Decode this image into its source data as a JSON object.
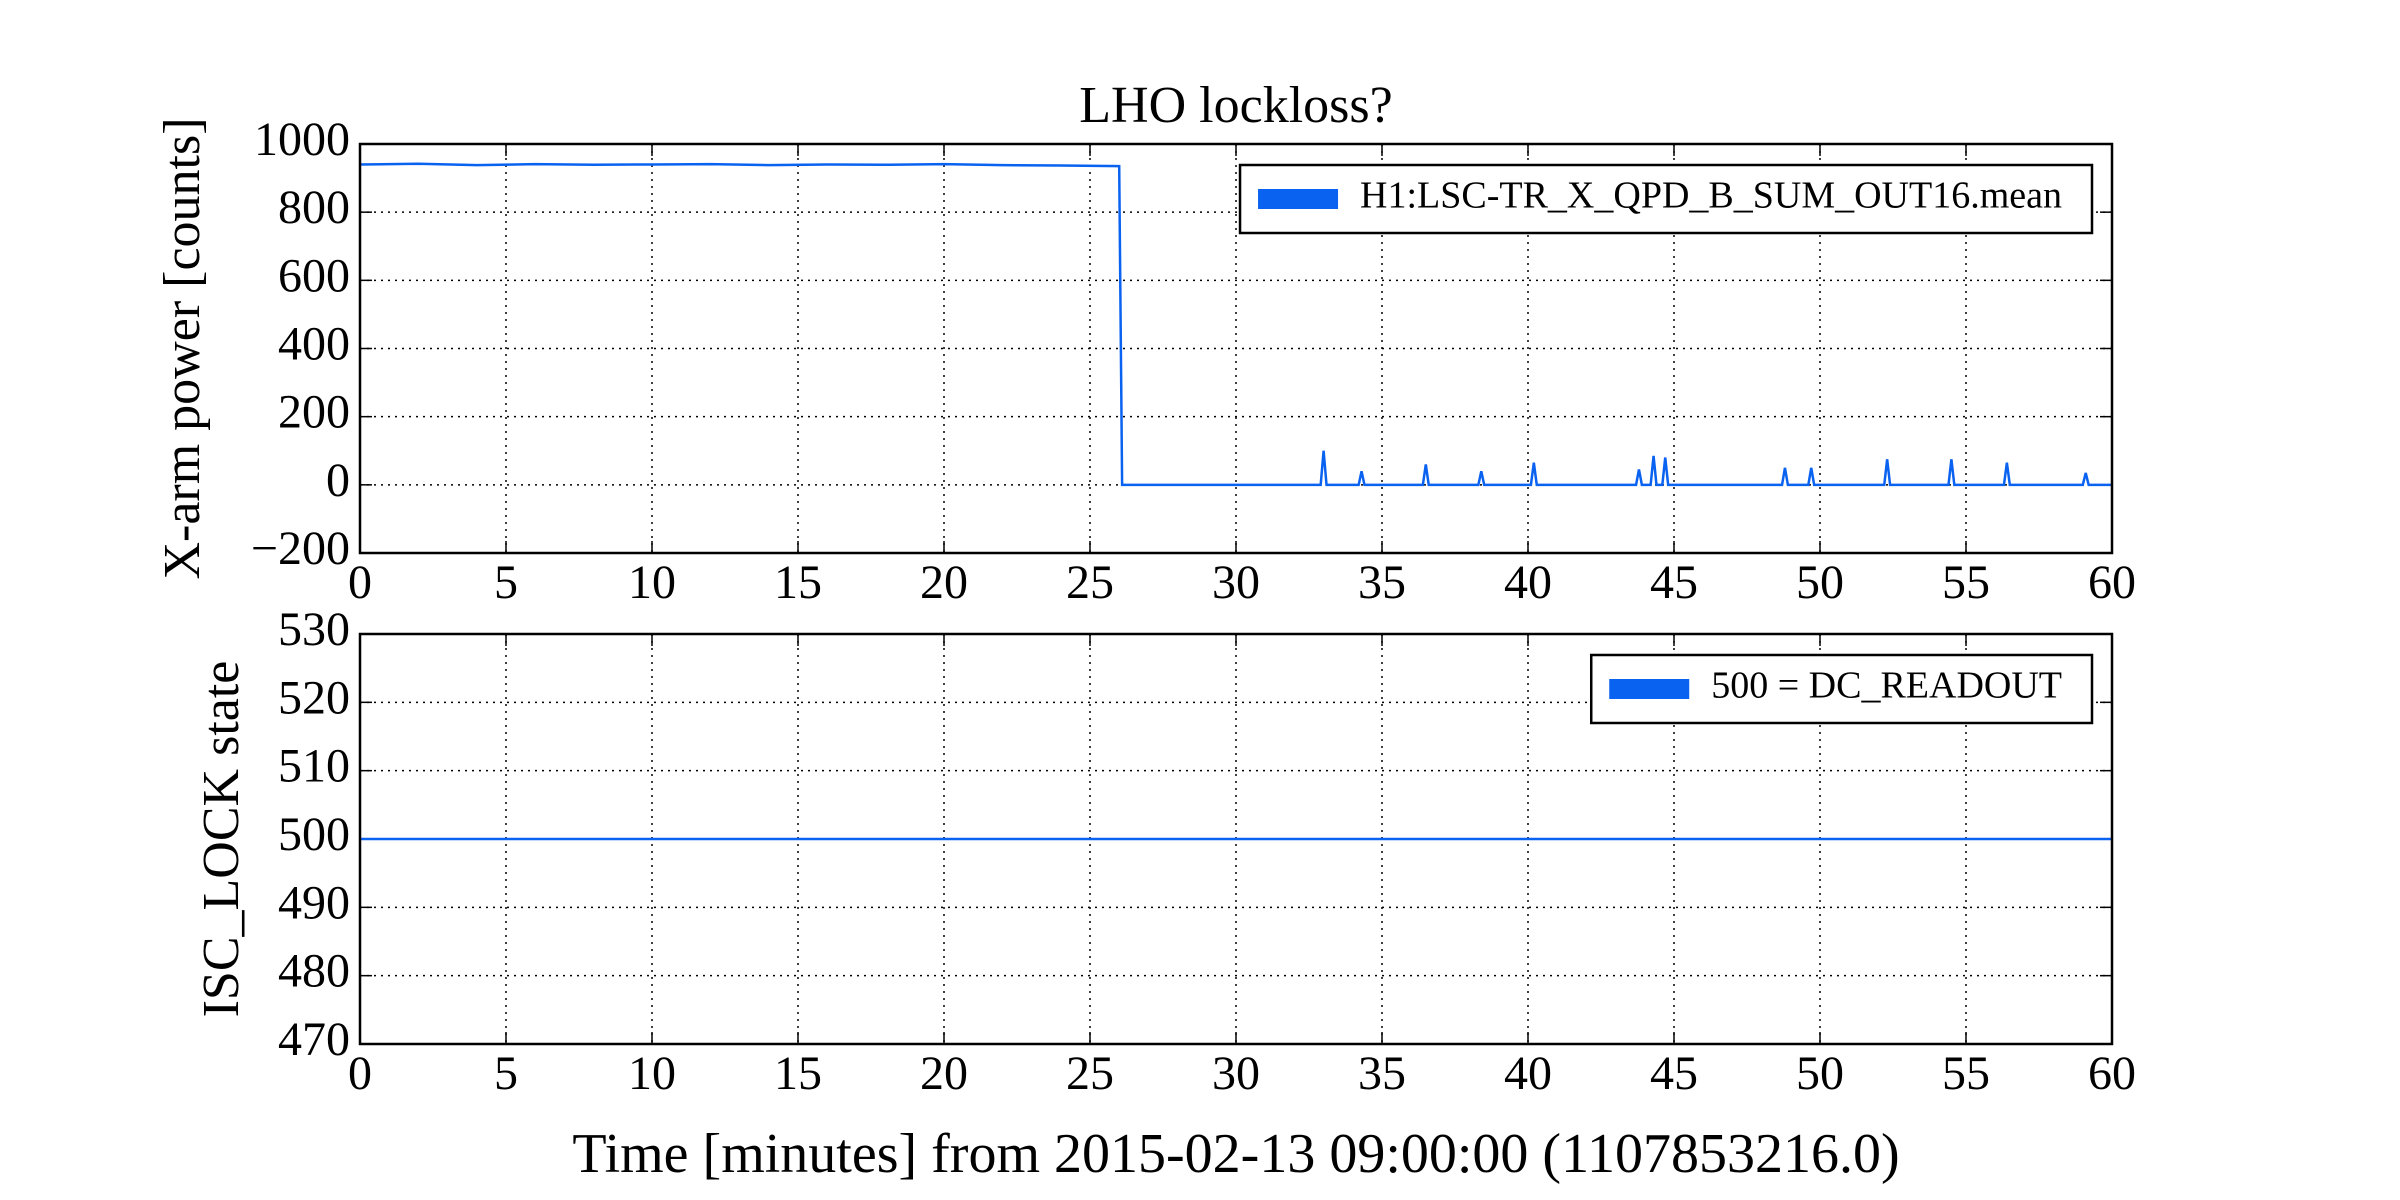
{
  "chart_data": [
    {
      "type": "line",
      "title": "LHO lockloss?",
      "y_label": "X-arm power [counts]",
      "xlim": [
        0,
        60
      ],
      "xticks": [
        0,
        5,
        10,
        15,
        20,
        25,
        30,
        35,
        40,
        45,
        50,
        55,
        60
      ],
      "ylim": [
        -200,
        1000
      ],
      "yticks": [
        {
          "value": -200,
          "label": "−200"
        },
        0,
        200,
        400,
        600,
        800,
        1000
      ],
      "grid": true,
      "legend": "upper right",
      "x": [
        0,
        2,
        4,
        6,
        8,
        10,
        12,
        14,
        16,
        18,
        20,
        22,
        24,
        26,
        26.1,
        32.9,
        33,
        33.1,
        34.2,
        34.3,
        34.4,
        36.4,
        36.5,
        36.6,
        38.3,
        38.4,
        38.5,
        40.1,
        40.2,
        40.3,
        43.7,
        43.8,
        43.9,
        44.2,
        44.3,
        44.4,
        44.6,
        44.7,
        44.8,
        48.7,
        48.8,
        48.9,
        49.6,
        49.7,
        49.8,
        52.2,
        52.3,
        52.4,
        54.4,
        54.5,
        54.6,
        56.3,
        56.4,
        56.5,
        59,
        59.1,
        59.2,
        60
      ],
      "series": [
        {
          "name": "H1:LSC-TR_X_QPD_B_SUM_OUT16.mean",
          "color": "#0a62f0",
          "values": [
            940,
            942,
            938,
            941,
            939,
            940,
            941,
            938,
            940,
            939,
            941,
            938,
            937,
            935,
            0,
            0,
            100,
            0,
            0,
            40,
            0,
            0,
            60,
            0,
            0,
            40,
            0,
            0,
            65,
            0,
            0,
            45,
            0,
            0,
            85,
            0,
            0,
            80,
            0,
            0,
            50,
            0,
            0,
            50,
            0,
            0,
            75,
            0,
            0,
            75,
            0,
            0,
            65,
            0,
            0,
            35,
            0,
            0
          ]
        }
      ]
    },
    {
      "type": "line",
      "y_label": "ISC_LOCK state",
      "x_label": "Time [minutes] from 2015-02-13 09:00:00 (1107853216.0)",
      "xlim": [
        0,
        60
      ],
      "xticks": [
        0,
        5,
        10,
        15,
        20,
        25,
        30,
        35,
        40,
        45,
        50,
        55,
        60
      ],
      "ylim": [
        470,
        530
      ],
      "yticks": [
        470,
        480,
        490,
        500,
        510,
        520,
        530
      ],
      "grid": true,
      "legend": "upper right",
      "x": [
        0,
        60
      ],
      "series": [
        {
          "name": "500 = DC_READOUT",
          "color": "#0a62f0",
          "values": [
            500,
            500
          ]
        }
      ]
    }
  ]
}
